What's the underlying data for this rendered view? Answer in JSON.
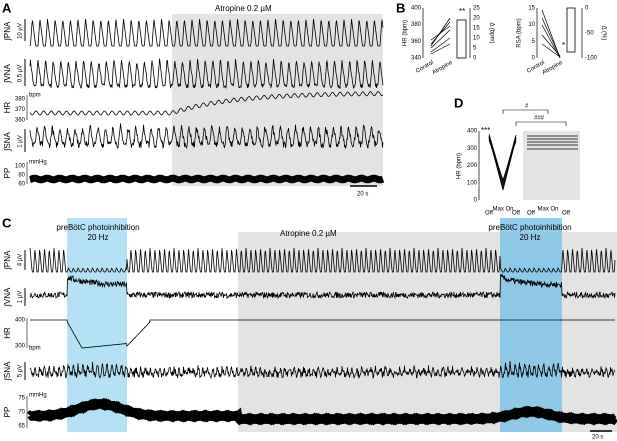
{
  "panels": {
    "a": {
      "label": "A",
      "drug": "Atropine 0.2 µM",
      "time_bar": "20 s",
      "traces": [
        {
          "name": "∫PNA",
          "scale": "10 µV"
        },
        {
          "name": "∫VNA",
          "scale": "0.5 µV"
        },
        {
          "name": "HR",
          "scale": "bpm",
          "ticks": [
            380,
            370,
            360
          ]
        },
        {
          "name": "∫SNA",
          "scale": "1 µV"
        },
        {
          "name": "PP",
          "scale": "mmHg",
          "ticks": [
            100,
            80,
            60
          ]
        }
      ]
    },
    "b": {
      "label": "B",
      "left": {
        "y_label": "HR (bpm)",
        "y_ticks": [
          400,
          380,
          360,
          340
        ],
        "y2_label": "Δ (bpm)",
        "y2_ticks": [
          25,
          20,
          15,
          10,
          5,
          0
        ],
        "categories": [
          "Control",
          "Atropine"
        ],
        "sig": "**"
      },
      "right": {
        "y_label": "RSA (bpm)",
        "y_ticks": [
          15,
          10,
          5,
          0
        ],
        "y2_label": "Δ (%)",
        "y2_ticks": [
          0,
          -50,
          -100
        ],
        "categories": [
          "Control",
          "Atropine"
        ],
        "sig": "*"
      }
    },
    "c": {
      "label": "C",
      "stim": "preBötC photoinhibition",
      "freq": "20 Hz",
      "drug": "Atropine 0.2 µM",
      "time_bar": "20 s",
      "traces": [
        {
          "name": "∫PNA",
          "scale": "4 µV"
        },
        {
          "name": "∫VNA",
          "scale": "1 µV"
        },
        {
          "name": "HR",
          "scale": "bpm",
          "ticks": [
            400,
            300
          ]
        },
        {
          "name": "∫SNA",
          "scale": "5 µV"
        },
        {
          "name": "PP",
          "scale": "mmHg",
          "ticks": [
            75,
            70,
            65
          ]
        }
      ]
    },
    "d": {
      "label": "D",
      "y_label": "HR (bpm)",
      "y_ticks": [
        400,
        300,
        200,
        100,
        0
      ],
      "x_labels": [
        "Off",
        "Max\nOn",
        "Off",
        "Off",
        "Max\nOn",
        "Off"
      ],
      "sig_top": "#",
      "sig_mid": "###",
      "sig_left": "***"
    }
  }
}
